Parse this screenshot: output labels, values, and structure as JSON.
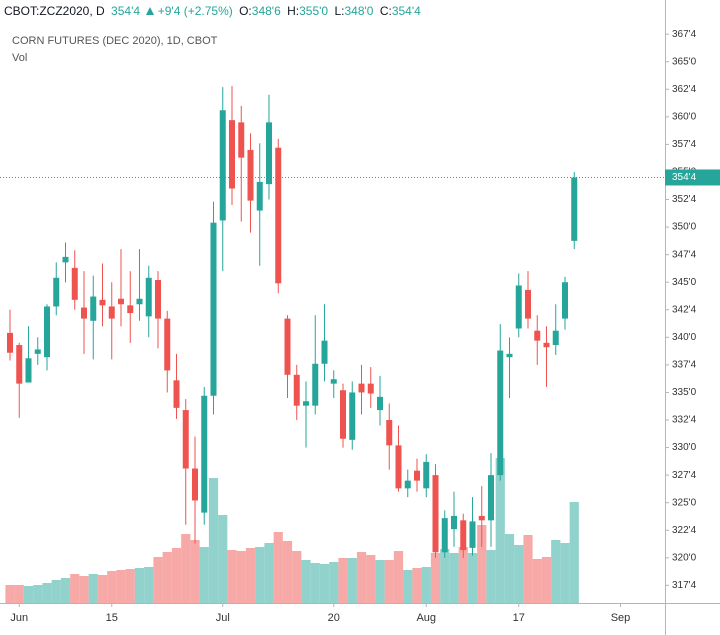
{
  "header": {
    "symbol": "CBOT:ZCZ2020, D",
    "last": "354'4",
    "change": "+9'4 (+2.75%)",
    "o_label": "O:",
    "o": "348'6",
    "h_label": "H:",
    "h": "355'0",
    "l_label": "L:",
    "l": "348'0",
    "c_label": "C:",
    "c": "354'4"
  },
  "chart_data": {
    "type": "candlestick",
    "title": "CORN FUTURES (DEC 2020), 1D, CBOT",
    "subtitle": "Vol",
    "up_color": "#26a69a",
    "down_color": "#ef5350",
    "categories": [
      null,
      "Jun",
      null,
      null,
      null,
      null,
      null,
      null,
      null,
      null,
      null,
      "15",
      null,
      null,
      null,
      null,
      null,
      null,
      null,
      null,
      null,
      null,
      null,
      "Jul",
      null,
      null,
      null,
      null,
      null,
      null,
      null,
      null,
      null,
      null,
      null,
      "20",
      null,
      null,
      null,
      null,
      null,
      null,
      null,
      null,
      null,
      "Aug",
      null,
      null,
      null,
      null,
      null,
      null,
      null,
      null,
      null,
      "17",
      null,
      null,
      null,
      null,
      null,
      null,
      null,
      null,
      null,
      null,
      "Sep",
      null,
      null,
      null,
      null
    ],
    "open": [
      340.4,
      339.3,
      335.9,
      338.5,
      338.2,
      342.8,
      346.8,
      346.3,
      342.7,
      341.5,
      343.4,
      342.8,
      343.5,
      342.9,
      343.0,
      341.9,
      345.2,
      341.7,
      336.1,
      333.4,
      328.1,
      324.1,
      334.7,
      350.6,
      359.7,
      359.5,
      357.0,
      351.5,
      353.9,
      357.2,
      341.7,
      336.6,
      333.8,
      333.8,
      337.6,
      335.8,
      335.2,
      330.7,
      335.8,
      335.8,
      333.4,
      332.5,
      330.2,
      326.3,
      327.9,
      326.3,
      327.5,
      320.5,
      322.6,
      323.4,
      320.9,
      323.8,
      323.4,
      327.5,
      338.2,
      340.8,
      344.3,
      340.6,
      339.5,
      339.3,
      341.7,
      348.75,
      null,
      null,
      null,
      null,
      null,
      null,
      null,
      null,
      null
    ],
    "high": [
      342.5,
      339.5,
      341,
      340,
      343,
      346.8,
      348.6,
      347.9,
      346,
      345.6,
      346.7,
      345,
      348,
      346,
      348,
      346.5,
      346,
      342.4,
      338.5,
      334.4,
      331,
      335.5,
      352.3,
      362.7,
      362.8,
      361,
      358.5,
      357.6,
      362,
      358,
      342,
      337.5,
      336,
      342,
      343,
      337,
      335.8,
      336,
      337.5,
      337.3,
      336.5,
      334,
      332,
      328,
      329,
      329.4,
      328.5,
      324.3,
      326,
      324,
      325.5,
      326.5,
      329.5,
      341.2,
      340,
      345.8,
      346,
      342,
      341,
      343,
      345.5,
      355,
      null,
      null,
      null,
      null,
      null,
      null,
      null,
      null,
      null
    ],
    "low": [
      337.9,
      332.7,
      336,
      337.5,
      337,
      342,
      345,
      342.5,
      338.5,
      338,
      341,
      338,
      341,
      339.5,
      341.5,
      340,
      339,
      335,
      332.6,
      323,
      321.3,
      323,
      333,
      346,
      352,
      350.5,
      349.5,
      346.5,
      352.5,
      344,
      334.5,
      332.5,
      330,
      333,
      336,
      334.5,
      330,
      329.8,
      333,
      333.6,
      332,
      328,
      326,
      325.5,
      326,
      325.5,
      320,
      320,
      321,
      320,
      320.2,
      321,
      321,
      327,
      334.5,
      340,
      340.8,
      337.5,
      335.5,
      338.4,
      340.7,
      348,
      null,
      null,
      null,
      null,
      null,
      null,
      null,
      null,
      null
    ],
    "close": [
      338.6,
      335.8,
      338.1,
      338.9,
      342.8,
      345.4,
      347.3,
      343.4,
      341.7,
      343.7,
      342.9,
      341.7,
      343.0,
      342.2,
      343.5,
      345.4,
      341.7,
      337.0,
      333.6,
      328.1,
      325.2,
      334.7,
      350.4,
      360.6,
      353.5,
      356.3,
      352.4,
      354.1,
      359.5,
      344.9,
      336.6,
      333.8,
      334.2,
      337.6,
      339.7,
      336.2,
      330.8,
      335.0,
      335.0,
      334.9,
      334.6,
      330.2,
      326.3,
      327.0,
      327.0,
      328.7,
      320.5,
      323.6,
      323.8,
      320.7,
      323.3,
      323.4,
      327.5,
      338.8,
      338.5,
      344.7,
      341.7,
      339.7,
      339.1,
      340.6,
      345.0,
      354.5,
      null,
      null,
      null,
      null,
      null,
      null,
      null,
      null,
      null
    ],
    "volume": [
      18,
      18,
      17,
      18,
      20,
      23,
      25,
      29,
      27,
      29,
      28,
      32,
      33,
      34,
      35,
      36,
      46,
      51,
      55,
      69,
      63,
      56,
      125,
      88,
      53,
      52,
      55,
      56,
      60,
      71,
      62,
      52,
      43,
      40,
      39,
      41,
      45,
      45,
      51,
      48,
      43,
      43,
      52,
      33,
      35,
      36,
      50,
      54,
      50,
      56,
      50,
      78,
      53,
      145,
      69,
      58,
      68,
      44,
      46,
      63,
      60,
      101,
      null,
      null,
      null,
      null,
      null,
      null,
      null,
      null,
      null
    ],
    "ylim": [
      315.9,
      370.6
    ],
    "yticks": [
      {
        "value": 317.5,
        "label": "317'4"
      },
      {
        "value": 320,
        "label": "320'0"
      },
      {
        "value": 322.5,
        "label": "322'4"
      },
      {
        "value": 325,
        "label": "325'0"
      },
      {
        "value": 327.5,
        "label": "327'4"
      },
      {
        "value": 330,
        "label": "330'0"
      },
      {
        "value": 332.5,
        "label": "332'4"
      },
      {
        "value": 335,
        "label": "335'0"
      },
      {
        "value": 337.5,
        "label": "337'4"
      },
      {
        "value": 340,
        "label": "340'0"
      },
      {
        "value": 342.5,
        "label": "342'4"
      },
      {
        "value": 345,
        "label": "345'0"
      },
      {
        "value": 347.5,
        "label": "347'4"
      },
      {
        "value": 350,
        "label": "350'0"
      },
      {
        "value": 352.5,
        "label": "352'4"
      },
      {
        "value": 355,
        "label": "355'0"
      },
      {
        "value": 357.5,
        "label": "357'4"
      },
      {
        "value": 360,
        "label": "360'0"
      },
      {
        "value": 362.5,
        "label": "362'4"
      },
      {
        "value": 365,
        "label": "365'0"
      },
      {
        "value": 367.5,
        "label": "367'4"
      }
    ],
    "last_price": {
      "value": 354.5,
      "label": "354'4"
    },
    "grid": false
  }
}
